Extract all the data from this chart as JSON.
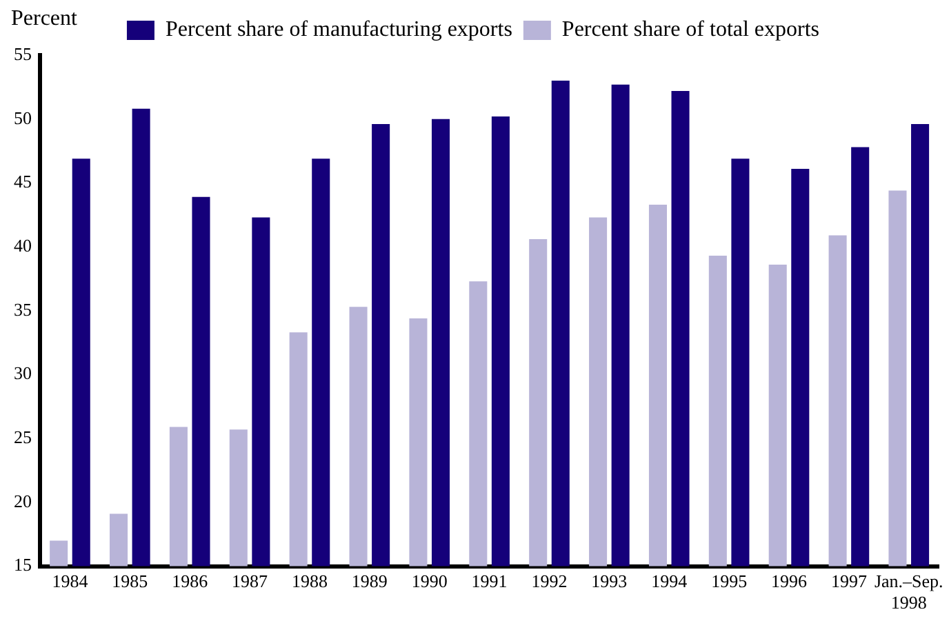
{
  "chart_data": {
    "type": "bar",
    "ylabel": "Percent",
    "categories": [
      "1984",
      "1985",
      "1986",
      "1987",
      "1988",
      "1989",
      "1990",
      "1991",
      "1992",
      "1993",
      "1994",
      "1995",
      "1996",
      "1997",
      "Jan.–Sep. 1998"
    ],
    "series": [
      {
        "name": "Percent share of total exports",
        "color": "#b8b4d8",
        "values": [
          17.0,
          19.1,
          25.9,
          25.7,
          33.3,
          35.3,
          34.4,
          37.3,
          40.6,
          42.3,
          43.3,
          39.3,
          38.6,
          40.9,
          44.4
        ]
      },
      {
        "name": "Percent share of manufacturing exports",
        "color": "#15007a",
        "values": [
          46.9,
          50.8,
          43.9,
          42.3,
          46.9,
          49.6,
          50.0,
          50.2,
          53.0,
          52.7,
          52.2,
          46.9,
          46.1,
          47.8,
          49.6
        ]
      }
    ],
    "ylim": [
      15,
      55
    ],
    "yticks": [
      15,
      20,
      25,
      30,
      35,
      40,
      45,
      50,
      55
    ],
    "grid": false,
    "legend": "top"
  }
}
